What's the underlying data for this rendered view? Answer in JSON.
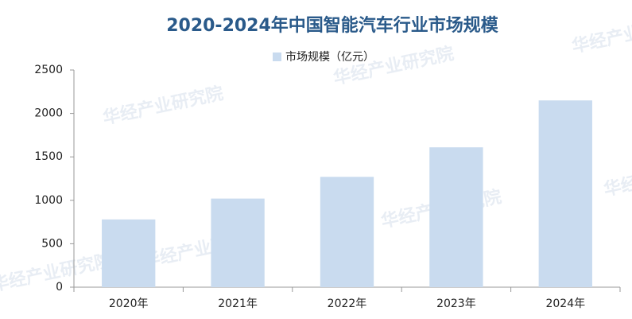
{
  "chart_data": {
    "type": "bar",
    "title": "2020-2024年中国智能汽车行业市场规模",
    "categories": [
      "2020年",
      "2021年",
      "2022年",
      "2023年",
      "2024年"
    ],
    "series": [
      {
        "name": "市场规模（亿元）",
        "color": "#c9dbef",
        "values": [
          780,
          1020,
          1270,
          1610,
          2150
        ]
      }
    ],
    "ylim": [
      0,
      2500
    ],
    "yticks": [
      0,
      500,
      1000,
      1500,
      2000,
      2500
    ],
    "grid": false,
    "legend": "top",
    "watermark": "华经产业研究院"
  }
}
